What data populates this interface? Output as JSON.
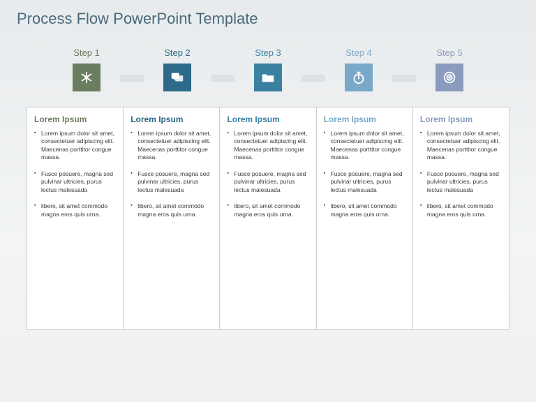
{
  "title": {
    "text": "Process Flow PowerPoint Template",
    "color": "#4a6a7a",
    "fontsize": 22,
    "weight": 300
  },
  "connector_color": "#dde1e3",
  "background_gradient": [
    "#e8ebed",
    "#f2f4f5",
    "#eef0f1"
  ],
  "steps": [
    {
      "label": "Step 1",
      "label_color": "#6a7d5f",
      "box_color": "#6a7d5f",
      "icon": "asterisk",
      "card_title": "Lorem Ipsum",
      "card_title_color": "#6a7d5f"
    },
    {
      "label": "Step 2",
      "label_color": "#2d6a8a",
      "box_color": "#2d6a8a",
      "icon": "chat",
      "card_title": "Lorem Ipsum",
      "card_title_color": "#2d6a8a"
    },
    {
      "label": "Step 3",
      "label_color": "#3a80a0",
      "box_color": "#3a80a0",
      "icon": "folder",
      "card_title": "Lorem Ipsum",
      "card_title_color": "#3a80a0"
    },
    {
      "label": "Step 4",
      "label_color": "#7aa8c8",
      "box_color": "#7aa8c8",
      "icon": "stopwatch",
      "card_title": "Lorem Ipsum",
      "card_title_color": "#7aa8c8"
    },
    {
      "label": "Step 5",
      "label_color": "#8a9bbe",
      "box_color": "#8a9bbe",
      "icon": "target",
      "card_title": "Lorem Ipsum",
      "card_title_color": "#8a9bbe"
    }
  ],
  "card_border_color": "#c8cccf",
  "card_bg": "#ffffff",
  "bullet_text_color": "#3a3a3a",
  "bullet_fontsize": 8.5,
  "bullets": [
    "Lorem ipsum dolor sit amet, consectetuer adipiscing elit. Maecenas porttitor congue massa.",
    "Fusce posuere, magna sed pulvinar ultricies, purus lectus malesuada",
    "libero, sit amet commodo magna eros quis urna."
  ]
}
